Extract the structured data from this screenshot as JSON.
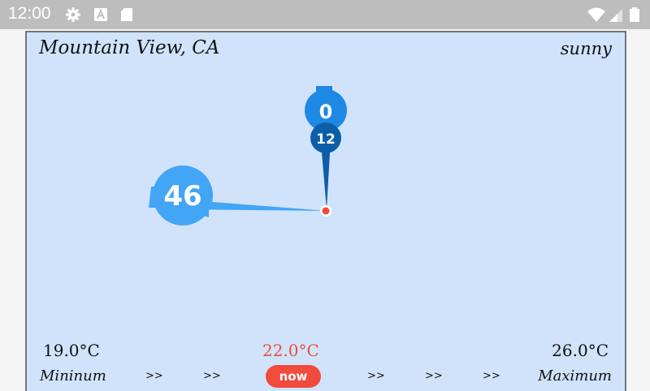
{
  "status_bar": {
    "time": "12:00",
    "icons_left": [
      "gear-icon",
      "a-badge-icon",
      "sd-card-icon"
    ],
    "icons_right": [
      "wifi-icon",
      "signal-icon",
      "battery-icon"
    ]
  },
  "weather": {
    "location": "Mountain View, CA",
    "condition": "sunny",
    "gauge": {
      "minute_value": "0",
      "hour_value": "12",
      "second_value": "46"
    },
    "temps": {
      "min": "19.0°C",
      "current": "22.0°C",
      "max": "26.0°C"
    },
    "labels": {
      "min": "Mininum",
      "now": "now",
      "max": "Maximum"
    },
    "arrows": [
      ">>",
      ">>",
      ">>",
      ">>",
      ">>"
    ]
  },
  "colors": {
    "status_bar_bg": "#bdbdbd",
    "panel_bg": "#d0e3fb",
    "panel_border": "#757575",
    "hand_light": "#42a5f5",
    "hand_mid": "#1e88e5",
    "hand_dark": "#0d5ea8",
    "accent_red": "#f24a3c"
  }
}
